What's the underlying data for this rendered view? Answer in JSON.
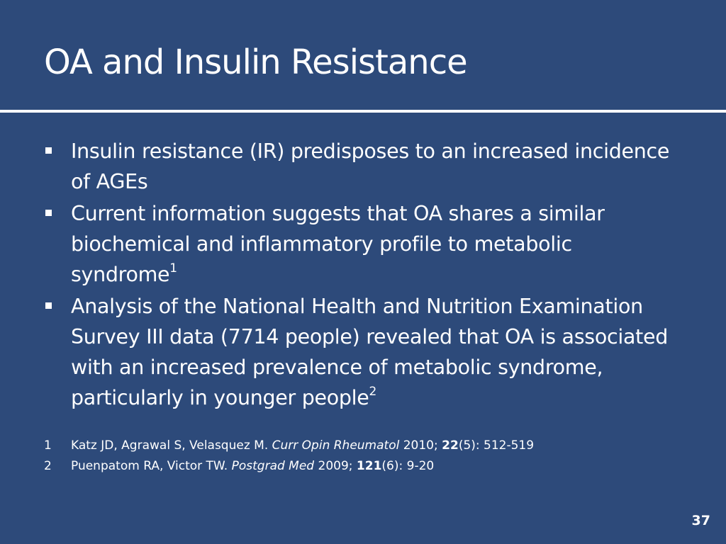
{
  "slide": {
    "title": "OA and Insulin Resistance",
    "bullets": [
      {
        "text": "Insulin resistance (IR) predisposes to an increased incidence of AGEs",
        "sup": ""
      },
      {
        "text": "Current information suggests that OA shares a similar biochemical and inflammatory profile to metabolic syndrome",
        "sup": "1"
      },
      {
        "text": "Analysis of the National Health and Nutrition Examination Survey III data (7714 people) revealed that OA is associated with an increased prevalence of metabolic syndrome, particularly in younger people",
        "sup": "2"
      }
    ],
    "references": [
      {
        "num": "1",
        "authors": "Katz JD, Agrawal S, Velasquez M.",
        "journal": "Curr Opin Rheumatol",
        "year": "2010;",
        "volume": "22",
        "rest": "(5): 512-519"
      },
      {
        "num": "2",
        "authors": "Puenpatom RA, Victor TW.",
        "journal": "Postgrad Med",
        "year": "2009;",
        "volume": "121",
        "rest": "(6): 9-20"
      }
    ],
    "page_number": "37",
    "colors": {
      "background": "#2d4a7a",
      "text": "#ffffff"
    }
  }
}
